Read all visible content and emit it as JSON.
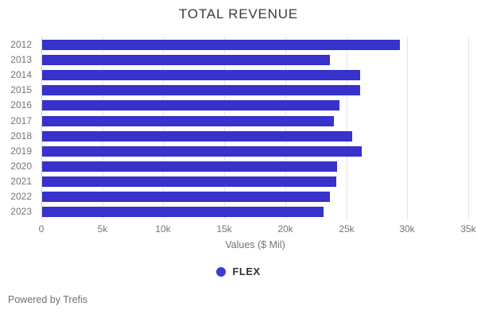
{
  "title": "TOTAL REVENUE",
  "footer": "Powered by Trefis",
  "legend": {
    "label": "FLEX",
    "dot_color": "#3e3ad3"
  },
  "colors": {
    "bar": "#3632cb",
    "axis_line": "#c9d5de",
    "gridline": "#e6e6ea",
    "title_text": "#3b3b3b",
    "axis_text": "#757575",
    "footer_text": "#717171"
  },
  "chart_data": {
    "type": "bar",
    "orientation": "horizontal",
    "title": "TOTAL REVENUE",
    "categories": [
      "2012",
      "2013",
      "2014",
      "2015",
      "2016",
      "2017",
      "2018",
      "2019",
      "2020",
      "2021",
      "2022",
      "2023"
    ],
    "series": [
      {
        "name": "FLEX",
        "values": [
          29300,
          23600,
          26100,
          26100,
          24400,
          23900,
          25400,
          26200,
          24200,
          24100,
          23600,
          23100
        ]
      }
    ],
    "xlabel": "Values ($ Mil)",
    "ylabel": "",
    "xlim": [
      0,
      35000
    ],
    "xticks": {
      "values": [
        0,
        5000,
        10000,
        15000,
        20000,
        25000,
        30000,
        35000
      ],
      "labels": [
        "0",
        "5k",
        "10k",
        "15k",
        "20k",
        "25k",
        "30k",
        "35k"
      ]
    },
    "grid": true,
    "legend_position": "bottom"
  }
}
